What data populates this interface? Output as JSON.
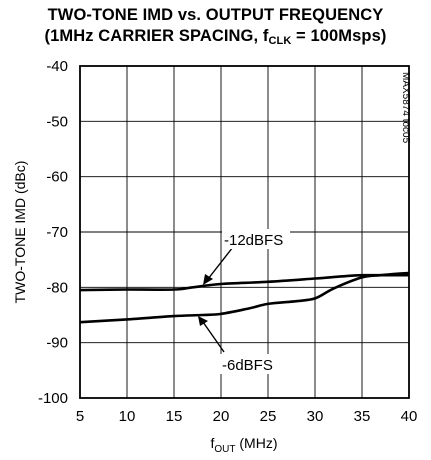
{
  "chart_data": {
    "type": "line",
    "title_line1": "TWO-TONE IMD vs. OUTPUT FREQUENCY",
    "title_line2_pre": "(1MHz CARRIER SPACING, f",
    "title_line2_sub": "CLK",
    "title_line2_post": " = 100Msps)",
    "xlabel_main": "f",
    "xlabel_sub": "OUT",
    "xlabel_unit": " (MHz)",
    "ylabel": "TWO-TONE IMD (dBc)",
    "xlim": [
      5,
      40
    ],
    "ylim": [
      -100,
      -40
    ],
    "x_ticks": [
      "5",
      "10",
      "15",
      "20",
      "25",
      "30",
      "35",
      "40"
    ],
    "y_ticks": [
      "-40",
      "-50",
      "-60",
      "-70",
      "-80",
      "-90",
      "-100"
    ],
    "grid": true,
    "note": "MAX5874 toc05",
    "series": [
      {
        "name": "-12dBFS",
        "x": [
          5,
          10,
          15,
          17,
          20,
          25,
          30,
          33,
          35,
          38,
          40
        ],
        "y": [
          -80.5,
          -80.4,
          -80.4,
          -80.0,
          -79.4,
          -79.0,
          -78.4,
          -78.0,
          -77.8,
          -77.8,
          -77.8
        ]
      },
      {
        "name": "-6dBFS",
        "x": [
          5,
          10,
          15,
          18,
          20,
          23,
          25,
          28,
          30,
          32,
          35,
          37,
          40
        ],
        "y": [
          -86.3,
          -85.8,
          -85.2,
          -85.0,
          -84.8,
          -83.8,
          -83.0,
          -82.5,
          -82.0,
          -80.2,
          -78.2,
          -77.8,
          -77.4
        ]
      }
    ]
  }
}
